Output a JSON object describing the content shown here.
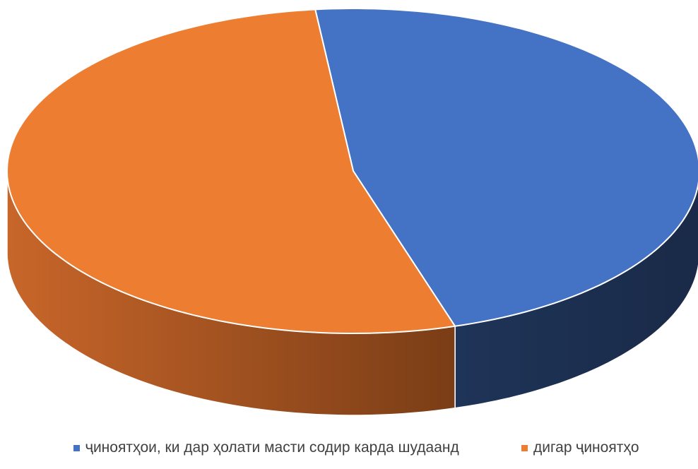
{
  "chart_data": {
    "type": "pie",
    "style": "3d",
    "title": "",
    "unit": "%",
    "slices": [
      {
        "label": "ҷиноятҳои, ки дар ҳолати масти содир карда шудаанд",
        "value": 47,
        "color": "#4472C4",
        "side_color": "#1F3560"
      },
      {
        "label": "дигар ҷиноятҳо",
        "value": 53,
        "color": "#ED7D31",
        "side_color": "#A85A22"
      }
    ],
    "legend_position": "bottom",
    "data_labels_shown": false
  }
}
